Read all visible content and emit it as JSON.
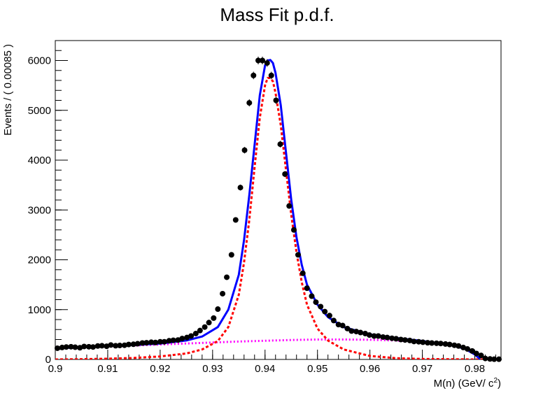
{
  "chart_data": {
    "type": "scatter",
    "title": "Mass Fit p.d.f.",
    "xlabel": "M(n) (GeV/ c",
    "xlabel_sup": "2",
    "xlabel_close": ")",
    "ylabel": "Events / ( 0.00085 )",
    "xlim": [
      0.9,
      0.985
    ],
    "ylim": [
      0,
      6400
    ],
    "x_ticks": [
      0.9,
      0.91,
      0.92,
      0.93,
      0.94,
      0.95,
      0.96,
      0.97,
      0.98
    ],
    "x_tick_labels": [
      "0.9",
      "0.91",
      "0.92",
      "0.93",
      "0.94",
      "0.95",
      "0.96",
      "0.97",
      "0.98"
    ],
    "y_ticks": [
      0,
      1000,
      2000,
      3000,
      4000,
      5000,
      6000
    ],
    "y_tick_labels": [
      "0",
      "1000",
      "2000",
      "3000",
      "4000",
      "5000",
      "6000"
    ],
    "grid": false,
    "legend": "none",
    "colors": {
      "data": "#000000",
      "total_fit": "#0000ff",
      "signal": "#ff0000",
      "background": "#ff00ff"
    },
    "series": [
      {
        "style": "points-with-error-bars",
        "x": [
          0.9004,
          0.9013,
          0.9021,
          0.903,
          0.9038,
          0.9047,
          0.9055,
          0.9064,
          0.9072,
          0.9081,
          0.9089,
          0.9098,
          0.9106,
          0.9115,
          0.9123,
          0.9132,
          0.914,
          0.9149,
          0.9157,
          0.9166,
          0.9174,
          0.9183,
          0.9191,
          0.92,
          0.9208,
          0.9217,
          0.9225,
          0.9234,
          0.9242,
          0.9251,
          0.9259,
          0.9268,
          0.9276,
          0.9285,
          0.9293,
          0.9302,
          0.931,
          0.9319,
          0.9327,
          0.9336,
          0.9344,
          0.9353,
          0.9361,
          0.937,
          0.9378,
          0.9387,
          0.9395,
          0.9404,
          0.9412,
          0.9421,
          0.9429,
          0.9438,
          0.9446,
          0.9455,
          0.9463,
          0.9472,
          0.948,
          0.9489,
          0.9497,
          0.9506,
          0.9514,
          0.9523,
          0.9531,
          0.954,
          0.9548,
          0.9557,
          0.9565,
          0.9574,
          0.9582,
          0.9591,
          0.9599,
          0.9608,
          0.9616,
          0.9625,
          0.9633,
          0.9642,
          0.965,
          0.9659,
          0.9667,
          0.9676,
          0.9684,
          0.9693,
          0.9701,
          0.971,
          0.9718,
          0.9727,
          0.9735,
          0.9744,
          0.9752,
          0.9761,
          0.9769,
          0.9778,
          0.9786,
          0.9795,
          0.9803,
          0.9812,
          0.982,
          0.9829,
          0.9837,
          0.9846
        ],
        "y": [
          225,
          240,
          250,
          255,
          245,
          235,
          260,
          255,
          250,
          270,
          275,
          265,
          290,
          275,
          280,
          285,
          300,
          305,
          315,
          330,
          335,
          345,
          340,
          355,
          355,
          375,
          385,
          390,
          420,
          440,
          470,
          520,
          580,
          650,
          740,
          830,
          1010,
          1320,
          1650,
          2100,
          2800,
          3450,
          4200,
          5150,
          5700,
          6000,
          6000,
          5950,
          5700,
          5200,
          4320,
          3720,
          3080,
          2600,
          2100,
          1730,
          1430,
          1270,
          1150,
          1060,
          960,
          880,
          780,
          700,
          680,
          620,
          570,
          560,
          540,
          520,
          490,
          470,
          470,
          450,
          440,
          425,
          415,
          400,
          390,
          380,
          360,
          355,
          345,
          335,
          330,
          325,
          320,
          310,
          300,
          285,
          270,
          240,
          210,
          170,
          120,
          80,
          20,
          10,
          5,
          5
        ]
      },
      {
        "name": "",
        "style": "solid-line",
        "x": [
          0.9,
          0.905,
          0.91,
          0.915,
          0.92,
          0.925,
          0.928,
          0.931,
          0.933,
          0.935,
          0.936,
          0.937,
          0.938,
          0.939,
          0.94,
          0.9405,
          0.941,
          0.9415,
          0.942,
          0.943,
          0.944,
          0.945,
          0.946,
          0.947,
          0.948,
          0.95,
          0.952,
          0.955,
          0.96,
          0.965,
          0.97,
          0.975,
          0.978,
          0.98,
          0.981
        ],
        "y": [
          220,
          250,
          270,
          290,
          320,
          380,
          460,
          650,
          1000,
          1700,
          2400,
          3300,
          4300,
          5300,
          5900,
          6000,
          6010,
          5950,
          5750,
          5100,
          4150,
          3200,
          2450,
          1900,
          1500,
          1100,
          850,
          650,
          500,
          430,
          370,
          300,
          220,
          100,
          10
        ]
      },
      {
        "name": "",
        "style": "dashed-line",
        "x": [
          0.9,
          0.905,
          0.91,
          0.915,
          0.92,
          0.925,
          0.928,
          0.931,
          0.933,
          0.935,
          0.936,
          0.937,
          0.938,
          0.939,
          0.94,
          0.9405,
          0.941,
          0.9415,
          0.942,
          0.943,
          0.944,
          0.945,
          0.946,
          0.947,
          0.948,
          0.95,
          0.952,
          0.955,
          0.96,
          0.965,
          0.97,
          0.975,
          0.98,
          0.985
        ],
        "y": [
          0,
          5,
          15,
          30,
          60,
          120,
          200,
          370,
          650,
          1300,
          1950,
          2800,
          3850,
          4850,
          5500,
          5650,
          5650,
          5580,
          5350,
          4700,
          3800,
          2900,
          2150,
          1550,
          1100,
          620,
          380,
          200,
          70,
          25,
          10,
          5,
          0,
          0
        ]
      },
      {
        "name": "",
        "style": "dotted-line",
        "x": [
          0.9,
          0.905,
          0.91,
          0.915,
          0.92,
          0.925,
          0.93,
          0.935,
          0.94,
          0.945,
          0.95,
          0.955,
          0.96,
          0.965,
          0.97,
          0.975,
          0.978,
          0.98,
          0.981
        ],
        "y": [
          220,
          240,
          260,
          280,
          300,
          320,
          340,
          360,
          375,
          390,
          400,
          400,
          395,
          380,
          350,
          300,
          220,
          100,
          10
        ]
      }
    ]
  }
}
